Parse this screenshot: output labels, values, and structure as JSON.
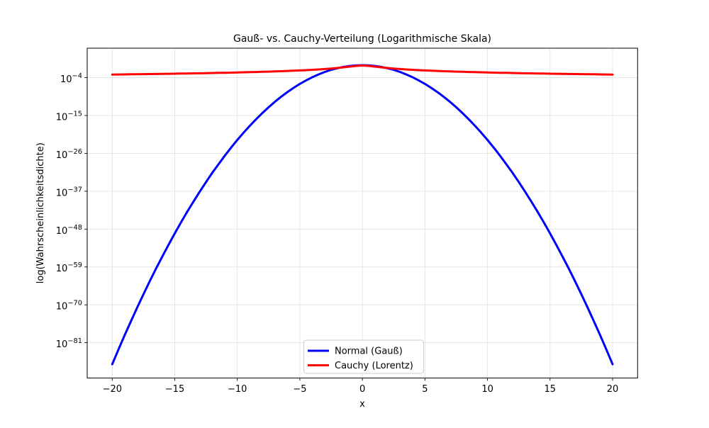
{
  "chart_data": {
    "type": "line",
    "title": "Gauß- vs. Cauchy-Verteilung (Logarithmische Skala)",
    "xlabel": "x",
    "ylabel": "log(Wahrscheinlichkeitsdichte)",
    "y_scale": "log",
    "grid": true,
    "legend_position": "lower center",
    "xlim": [
      -22,
      22
    ],
    "ylim_log10": [
      -91.25,
      4.55
    ],
    "x_ticks": [
      -20,
      -15,
      -10,
      -5,
      0,
      5,
      10,
      15,
      20
    ],
    "y_tick_exponents": [
      -4,
      -15,
      -26,
      -37,
      -48,
      -59,
      -70,
      -81
    ],
    "y_values_note": "series y values are log10(probability density)",
    "x": [
      -20,
      -19.5,
      -19,
      -18.5,
      -18,
      -17.5,
      -17,
      -16.5,
      -16,
      -15.5,
      -15,
      -14.5,
      -14,
      -13.5,
      -13,
      -12.5,
      -12,
      -11.5,
      -11,
      -10.5,
      -10,
      -9.5,
      -9,
      -8.5,
      -8,
      -7.5,
      -7,
      -6.5,
      -6,
      -5.5,
      -5,
      -4.5,
      -4,
      -3.5,
      -3,
      -2.5,
      -2,
      -1.5,
      -1,
      -0.5,
      0,
      0.5,
      1,
      1.5,
      2,
      2.5,
      3,
      3.5,
      4,
      4.5,
      5,
      5.5,
      6,
      6.5,
      7,
      7.5,
      8,
      8.5,
      9,
      9.5,
      10,
      10.5,
      11,
      11.5,
      12,
      12.5,
      13,
      13.5,
      14,
      14.5,
      15,
      15.5,
      16,
      16.5,
      17,
      17.5,
      18,
      18.5,
      19,
      19.5,
      20
    ],
    "series": [
      {
        "name": "Normal (Gauß)",
        "color": "#0000ff",
        "y_log10": [
          -87.258,
          -82.97,
          -78.789,
          -74.718,
          -70.755,
          -66.9,
          -63.154,
          -59.517,
          -55.988,
          -52.568,
          -49.257,
          -46.054,
          -42.96,
          -39.974,
          -37.097,
          -34.328,
          -31.668,
          -29.117,
          -26.674,
          -24.34,
          -22.114,
          -19.997,
          -17.988,
          -16.088,
          -14.296,
          -12.613,
          -11.039,
          -9.574,
          -8.216,
          -6.968,
          -5.828,
          -4.796,
          -3.873,
          -3.059,
          -2.353,
          -1.756,
          -1.268,
          -0.888,
          -0.616,
          -0.453,
          -0.399,
          -0.453,
          -0.616,
          -0.888,
          -1.268,
          -1.756,
          -2.353,
          -3.059,
          -3.873,
          -4.796,
          -5.828,
          -6.968,
          -8.216,
          -9.574,
          -11.039,
          -12.613,
          -14.296,
          -16.088,
          -17.988,
          -19.997,
          -22.114,
          -24.34,
          -26.674,
          -29.117,
          -31.668,
          -34.328,
          -37.097,
          -39.974,
          -42.96,
          -46.054,
          -49.257,
          -52.568,
          -55.988,
          -59.517,
          -63.154,
          -66.9,
          -70.755,
          -74.718,
          -78.789,
          -82.97,
          -87.258
        ]
      },
      {
        "name": "Cauchy (Lorentz)",
        "color": "#ff0000",
        "y_log10": [
          -3.1,
          -3.078,
          -3.056,
          -3.033,
          -3.009,
          -2.985,
          -2.96,
          -2.934,
          -2.907,
          -2.88,
          -2.851,
          -2.822,
          -2.792,
          -2.76,
          -2.728,
          -2.694,
          -2.658,
          -2.622,
          -2.584,
          -2.543,
          -2.502,
          -2.457,
          -2.411,
          -2.362,
          -2.31,
          -2.255,
          -2.196,
          -2.133,
          -2.065,
          -1.992,
          -1.912,
          -1.824,
          -1.728,
          -1.619,
          -1.497,
          -1.357,
          -1.196,
          -1.009,
          -0.798,
          -0.594,
          -0.497,
          -0.594,
          -0.798,
          -1.009,
          -1.196,
          -1.357,
          -1.497,
          -1.619,
          -1.728,
          -1.824,
          -1.912,
          -1.992,
          -2.065,
          -2.133,
          -2.196,
          -2.255,
          -2.31,
          -2.362,
          -2.411,
          -2.457,
          -2.502,
          -2.543,
          -2.584,
          -2.622,
          -2.658,
          -2.694,
          -2.728,
          -2.76,
          -2.792,
          -2.822,
          -2.851,
          -2.88,
          -2.907,
          -2.934,
          -2.96,
          -2.985,
          -3.009,
          -3.033,
          -3.056,
          -3.078,
          -3.1
        ]
      }
    ]
  },
  "style": {
    "grid_color": "#e4e4e4",
    "spine_color": "#000000",
    "legend_border_color": "#cccccc",
    "background": "#ffffff",
    "line_width": 3
  }
}
